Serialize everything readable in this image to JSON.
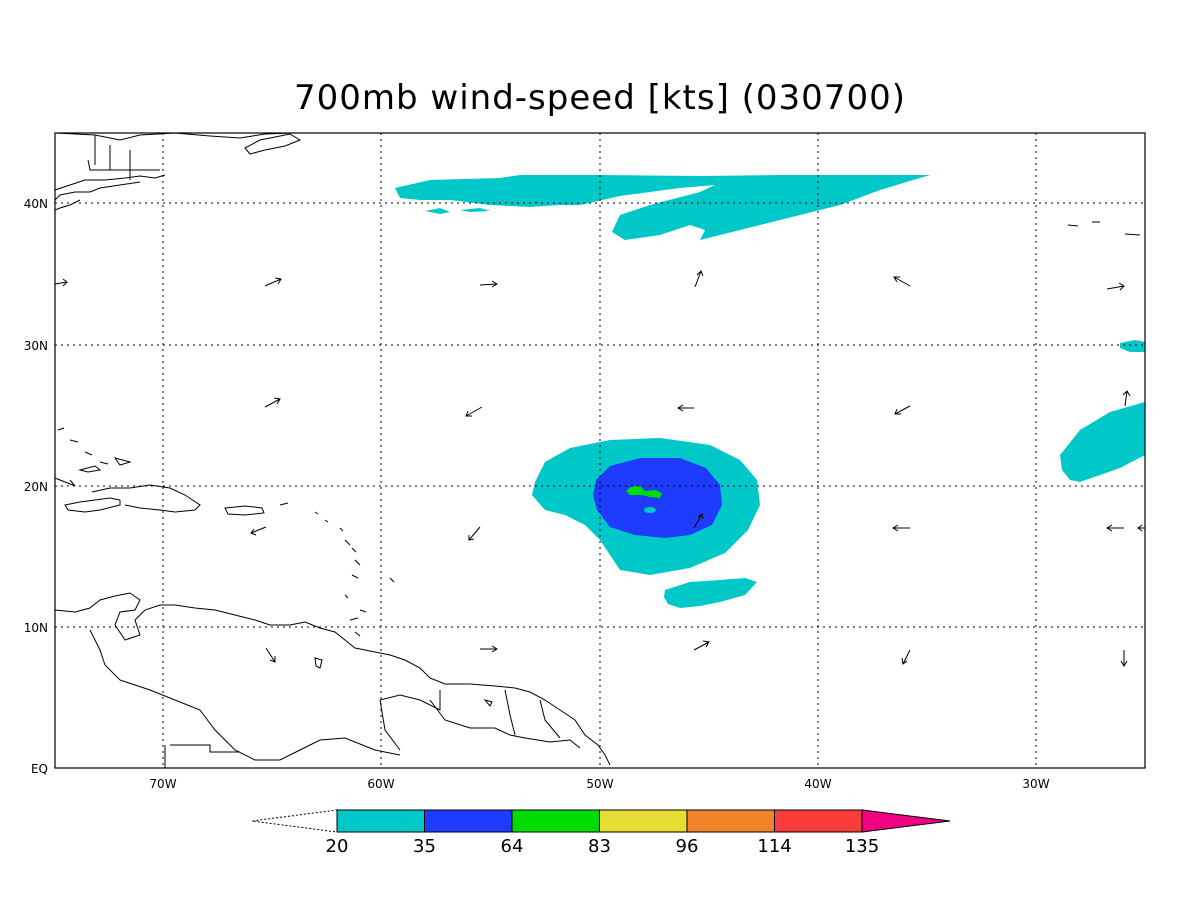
{
  "title": "700mb wind-speed [kts] (030700)",
  "axes": {
    "lon_labels": [
      "70W",
      "60W",
      "50W",
      "40W",
      "30W"
    ],
    "lat_labels": [
      "40N",
      "30N",
      "20N",
      "10N",
      "EQ"
    ]
  },
  "colorbar": {
    "labels": [
      "20",
      "35",
      "64",
      "83",
      "96",
      "114",
      "135"
    ],
    "colors": [
      "#00c8c8",
      "#1e3cff",
      "#00dc00",
      "#e6dc32",
      "#f08228",
      "#fa3c3c",
      "#f00082"
    ]
  },
  "map": {
    "lon_range": [
      -75,
      -25
    ],
    "lat_range": [
      0,
      45
    ],
    "grid": "dotted"
  },
  "colors": {
    "background": "#ffffff",
    "coastline": "#000000",
    "wind_20": "#00c8c8",
    "wind_35": "#1e3cff",
    "wind_64": "#00dc00"
  }
}
